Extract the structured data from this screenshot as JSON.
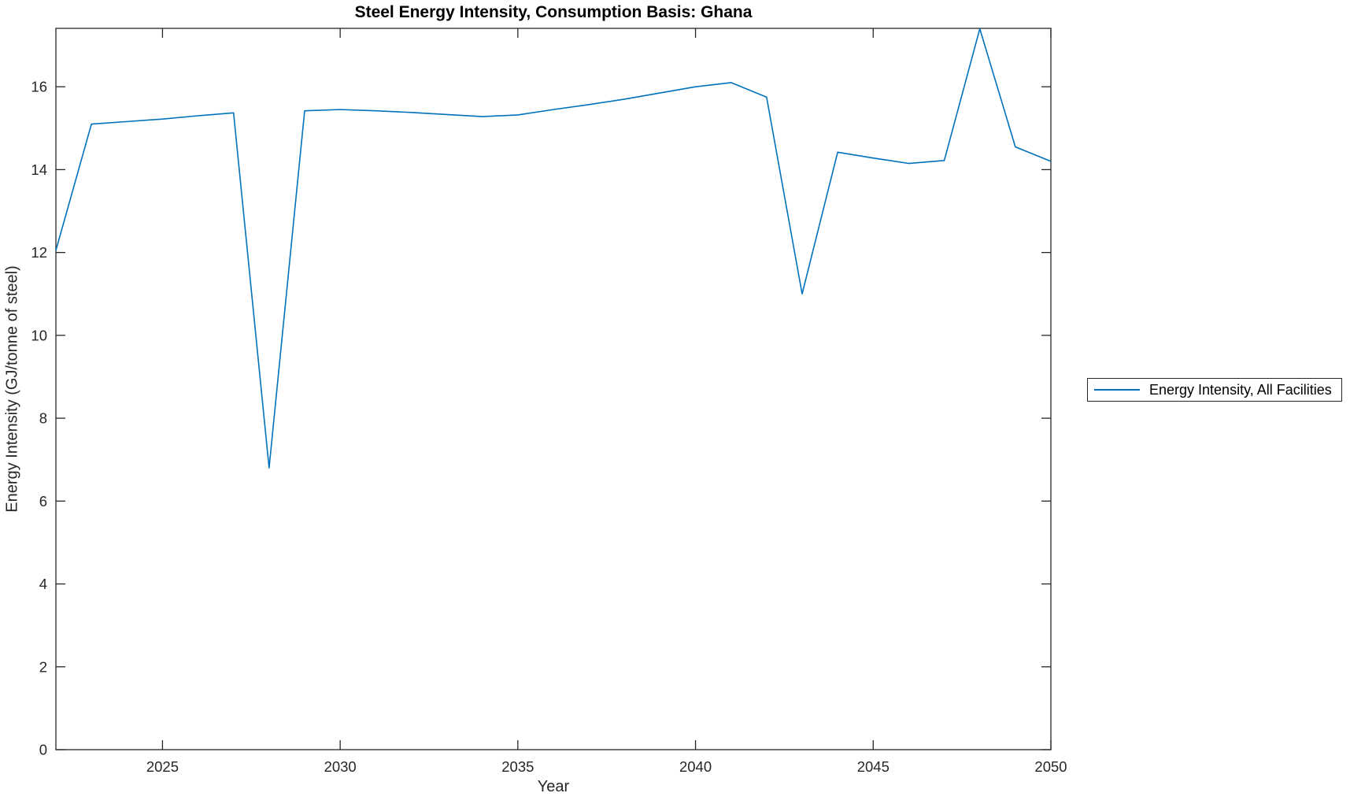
{
  "chart_data": {
    "type": "line",
    "title": "Steel Energy Intensity, Consumption Basis: Ghana",
    "xlabel": "Year",
    "ylabel": "Energy Intensity (GJ/tonne of steel)",
    "xlim": [
      2022,
      2050
    ],
    "ylim": [
      0,
      17.41
    ],
    "xticks": [
      2025,
      2030,
      2035,
      2040,
      2045,
      2050
    ],
    "yticks": [
      0,
      2,
      4,
      6,
      8,
      10,
      12,
      14,
      16
    ],
    "grid": false,
    "legend_position": "outside-right",
    "line_color": "#0072BD",
    "axis_color": "#262626",
    "title_color": "#000000",
    "background_color": "#FFFFFF",
    "series": [
      {
        "name": "Energy Intensity, All Facilities",
        "x": [
          2022,
          2023,
          2024,
          2025,
          2026,
          2027,
          2028,
          2029,
          2030,
          2031,
          2032,
          2033,
          2034,
          2035,
          2036,
          2037,
          2038,
          2039,
          2040,
          2041,
          2042,
          2043,
          2044,
          2045,
          2046,
          2047,
          2048,
          2049,
          2050
        ],
        "values": [
          12.05,
          15.1,
          15.16,
          15.22,
          15.3,
          15.37,
          6.8,
          15.42,
          15.45,
          15.42,
          15.38,
          15.33,
          15.28,
          15.32,
          15.45,
          15.57,
          15.7,
          15.85,
          16.0,
          16.1,
          15.75,
          11.0,
          14.42,
          14.28,
          14.15,
          14.22,
          17.4,
          14.55,
          14.2
        ]
      }
    ]
  }
}
